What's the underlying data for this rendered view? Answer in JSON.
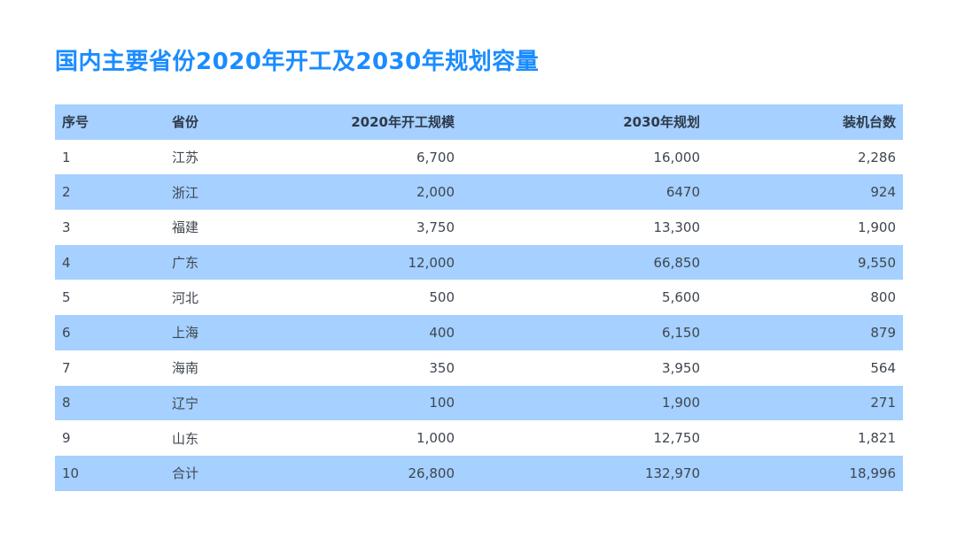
{
  "title": "国内主要省份2020年开工及2030年规划容量",
  "table": {
    "headers": {
      "idx": "序号",
      "province": "省份",
      "start2020": "2020年开工规模",
      "plan2030": "2030年规划",
      "units": "装机台数"
    },
    "rows": [
      {
        "idx": "1",
        "province": "江苏",
        "start2020": "6,700",
        "plan2030": "16,000",
        "units": "2,286"
      },
      {
        "idx": "2",
        "province": "浙江",
        "start2020": "2,000",
        "plan2030": "6470",
        "units": "924"
      },
      {
        "idx": "3",
        "province": "福建",
        "start2020": "3,750",
        "plan2030": "13,300",
        "units": "1,900"
      },
      {
        "idx": "4",
        "province": "广东",
        "start2020": "12,000",
        "plan2030": "66,850",
        "units": "9,550"
      },
      {
        "idx": "5",
        "province": "河北",
        "start2020": "500",
        "plan2030": "5,600",
        "units": "800"
      },
      {
        "idx": "6",
        "province": "上海",
        "start2020": "400",
        "plan2030": "6,150",
        "units": "879"
      },
      {
        "idx": "7",
        "province": "海南",
        "start2020": "350",
        "plan2030": "3,950",
        "units": "564"
      },
      {
        "idx": "8",
        "province": "辽宁",
        "start2020": "100",
        "plan2030": "1,900",
        "units": "271"
      },
      {
        "idx": "9",
        "province": "山东",
        "start2020": "1,000",
        "plan2030": "12,750",
        "units": "1,821"
      },
      {
        "idx": "10",
        "province": "合计",
        "start2020": "26,800",
        "plan2030": "132,970",
        "units": "18,996"
      }
    ]
  },
  "colors": {
    "title": "#1a8cff",
    "header_bg": "#a5d0ff",
    "stripe_bg": "#a5d0ff"
  }
}
